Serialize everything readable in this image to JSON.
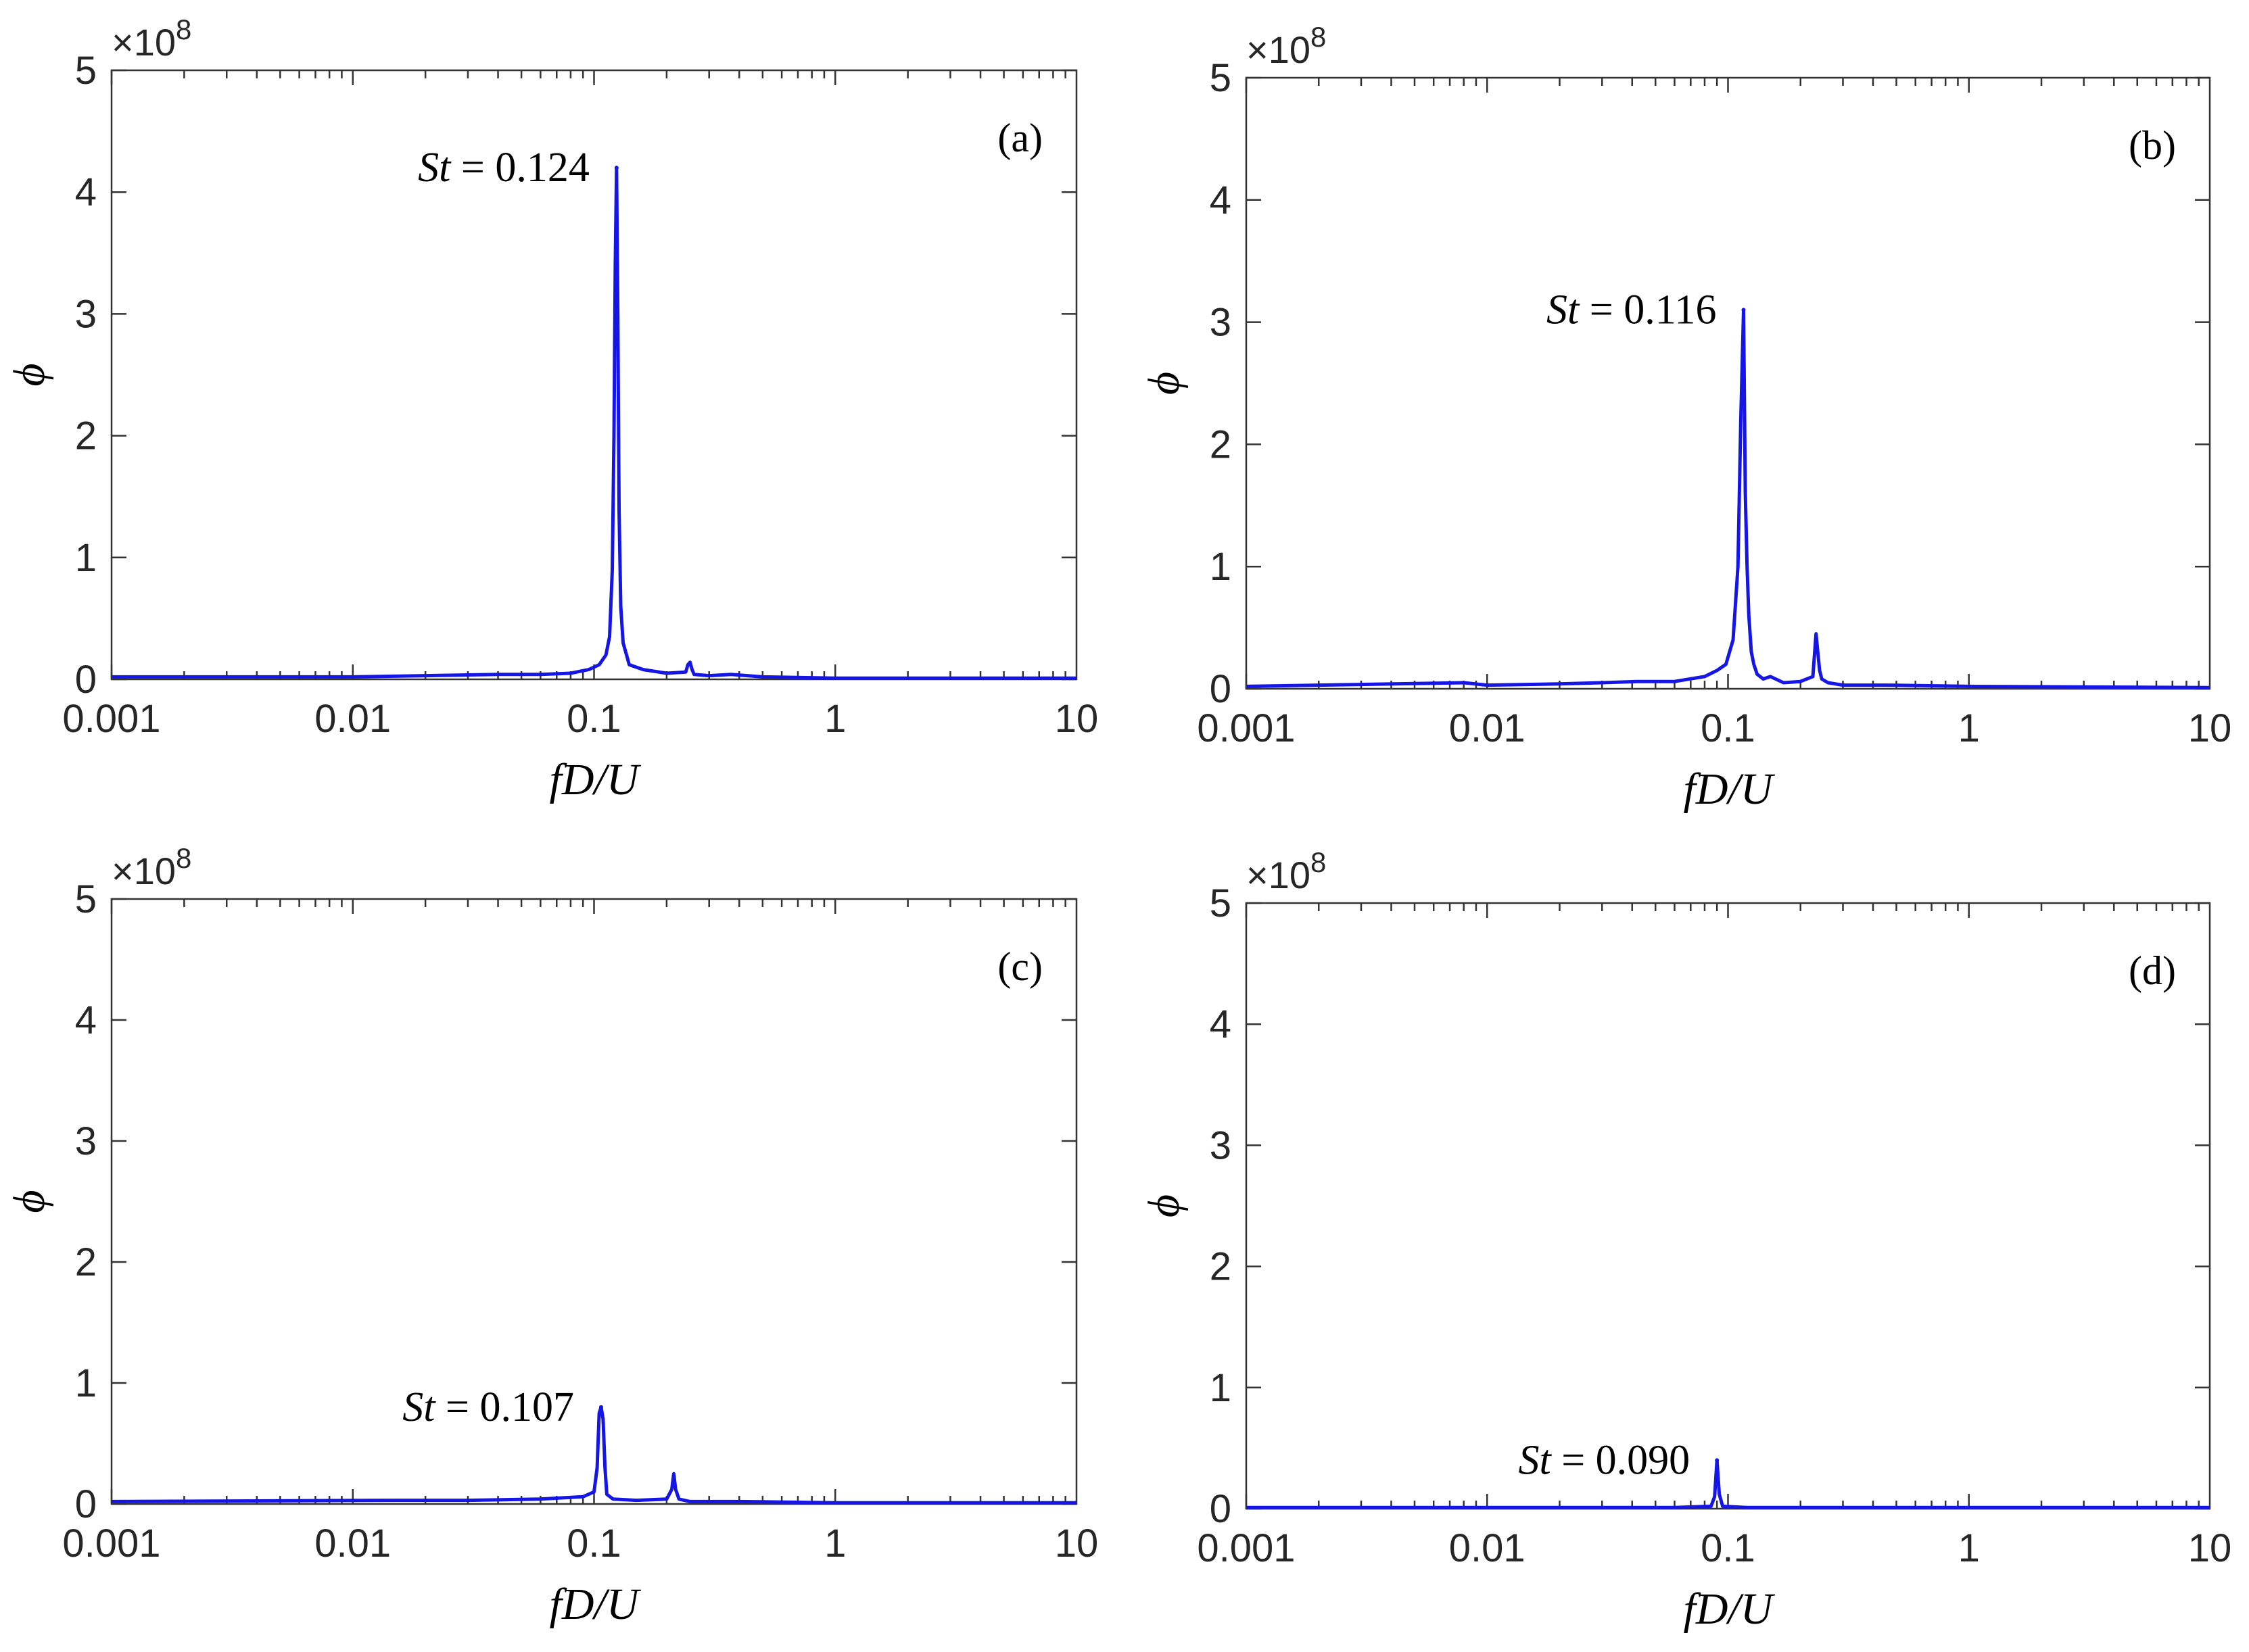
{
  "colors": {
    "series": "#1515e6",
    "axes": "#333333"
  },
  "chart_data": [
    {
      "type": "line",
      "panel_label": "(a)",
      "xlabel": "fD/U",
      "ylabel": "ϕ",
      "x_scale": "log",
      "xlim": [
        0.001,
        10
      ],
      "ylim": [
        0,
        5
      ],
      "y_multiplier": "×10^8",
      "x_tick_labels": [
        "0.001",
        "0.01",
        "0.1",
        "1",
        "10"
      ],
      "y_tick_labels": [
        "0",
        "1",
        "2",
        "3",
        "4",
        "5"
      ],
      "grid": false,
      "annotation": {
        "symbol": "St",
        "text": " = 0.124",
        "value": 0.124
      },
      "series": [
        {
          "x": [
            0.001,
            0.01,
            0.02,
            0.04,
            0.06,
            0.08,
            0.095,
            0.105,
            0.112,
            0.116,
            0.119,
            0.121,
            0.1225,
            0.124,
            0.1255,
            0.127,
            0.129,
            0.132,
            0.14,
            0.16,
            0.2,
            0.24,
            0.245,
            0.25,
            0.255,
            0.26,
            0.3,
            0.37,
            0.5,
            1,
            10
          ],
          "values": [
            0.02,
            0.02,
            0.03,
            0.04,
            0.04,
            0.05,
            0.08,
            0.12,
            0.2,
            0.35,
            0.9,
            2.0,
            3.4,
            4.2,
            3.0,
            1.4,
            0.6,
            0.3,
            0.12,
            0.08,
            0.05,
            0.06,
            0.12,
            0.14,
            0.08,
            0.04,
            0.03,
            0.04,
            0.02,
            0.01,
            0.01
          ]
        }
      ]
    },
    {
      "type": "line",
      "panel_label": "(b)",
      "xlabel": "fD/U",
      "ylabel": "ϕ",
      "x_scale": "log",
      "xlim": [
        0.001,
        10
      ],
      "ylim": [
        0,
        5
      ],
      "y_multiplier": "×10^8",
      "x_tick_labels": [
        "0.001",
        "0.01",
        "0.1",
        "1",
        "10"
      ],
      "y_tick_labels": [
        "0",
        "1",
        "2",
        "3",
        "4",
        "5"
      ],
      "grid": false,
      "annotation": {
        "symbol": "St",
        "text": " = 0.116",
        "value": 0.116
      },
      "series": [
        {
          "x": [
            0.001,
            0.008,
            0.01,
            0.02,
            0.03,
            0.042,
            0.06,
            0.08,
            0.09,
            0.098,
            0.105,
            0.11,
            0.113,
            0.116,
            0.118,
            0.12,
            0.122,
            0.125,
            0.128,
            0.132,
            0.14,
            0.15,
            0.17,
            0.2,
            0.225,
            0.232,
            0.236,
            0.24,
            0.245,
            0.26,
            0.3,
            0.45,
            1,
            10
          ],
          "values": [
            0.02,
            0.05,
            0.03,
            0.04,
            0.05,
            0.06,
            0.06,
            0.1,
            0.15,
            0.2,
            0.4,
            1.0,
            2.2,
            3.1,
            1.6,
            1.0,
            0.6,
            0.3,
            0.2,
            0.12,
            0.08,
            0.1,
            0.05,
            0.06,
            0.1,
            0.45,
            0.3,
            0.15,
            0.08,
            0.05,
            0.03,
            0.03,
            0.02,
            0.01
          ]
        }
      ]
    },
    {
      "type": "line",
      "panel_label": "(c)",
      "xlabel": "fD/U",
      "ylabel": "ϕ",
      "x_scale": "log",
      "xlim": [
        0.001,
        10
      ],
      "ylim": [
        0,
        5
      ],
      "y_multiplier": "×10^8",
      "x_tick_labels": [
        "0.001",
        "0.01",
        "0.1",
        "1",
        "10"
      ],
      "y_tick_labels": [
        "0",
        "1",
        "2",
        "3",
        "4",
        "5"
      ],
      "grid": false,
      "annotation": {
        "symbol": "St",
        "text": " = 0.107",
        "value": 0.107
      },
      "series": [
        {
          "x": [
            0.001,
            0.015,
            0.03,
            0.06,
            0.09,
            0.1,
            0.103,
            0.105,
            0.107,
            0.109,
            0.111,
            0.113,
            0.12,
            0.15,
            0.2,
            0.21,
            0.214,
            0.218,
            0.225,
            0.25,
            0.4,
            1,
            10
          ],
          "values": [
            0.02,
            0.03,
            0.03,
            0.04,
            0.06,
            0.1,
            0.3,
            0.75,
            0.8,
            0.7,
            0.3,
            0.08,
            0.04,
            0.03,
            0.04,
            0.12,
            0.25,
            0.12,
            0.04,
            0.02,
            0.02,
            0.01,
            0.01
          ]
        }
      ]
    },
    {
      "type": "line",
      "panel_label": "(d)",
      "xlabel": "fD/U",
      "ylabel": "ϕ",
      "x_scale": "log",
      "xlim": [
        0.001,
        10
      ],
      "ylim": [
        0,
        5
      ],
      "y_multiplier": "×10^8",
      "x_tick_labels": [
        "0.001",
        "0.01",
        "0.1",
        "1",
        "10"
      ],
      "y_tick_labels": [
        "0",
        "1",
        "2",
        "3",
        "4",
        "5"
      ],
      "grid": false,
      "annotation": {
        "symbol": "St",
        "text": " = 0.090",
        "value": 0.09
      },
      "series": [
        {
          "x": [
            0.001,
            0.02,
            0.06,
            0.085,
            0.088,
            0.09,
            0.092,
            0.095,
            0.12,
            0.3,
            1,
            10
          ],
          "values": [
            0.01,
            0.01,
            0.01,
            0.02,
            0.1,
            0.4,
            0.12,
            0.02,
            0.01,
            0.01,
            0.01,
            0.01
          ]
        }
      ]
    }
  ]
}
